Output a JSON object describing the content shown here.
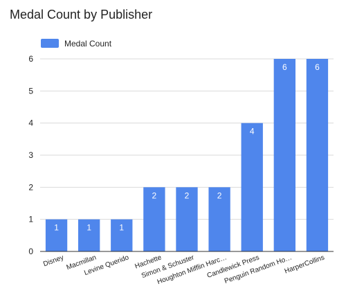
{
  "chart_data": {
    "type": "bar",
    "title": "Medal Count by Publisher",
    "xlabel": "",
    "ylabel": "",
    "categories": [
      "Disney",
      "Macmillan",
      "Levine Querido",
      "Hachette",
      "Simon & Schuster",
      "Houghton Mifflin Harc…",
      "Candlewick Press",
      "Penguin Random Ho…",
      "HarperCollins"
    ],
    "series": [
      {
        "name": "Medal Count",
        "values": [
          1,
          1,
          1,
          2,
          2,
          2,
          4,
          6,
          6
        ]
      }
    ],
    "data_labels": true,
    "ylim": [
      0,
      6
    ],
    "yticks": [
      0,
      1,
      2,
      3,
      4,
      5,
      6
    ],
    "grid": true,
    "legend": "top-left",
    "colors": {
      "bar": "#4f86ec",
      "grid": "#d9d9d9",
      "axis": "#333333",
      "title": "#222222",
      "label": "#222222",
      "data_label": "#ffffff"
    }
  }
}
